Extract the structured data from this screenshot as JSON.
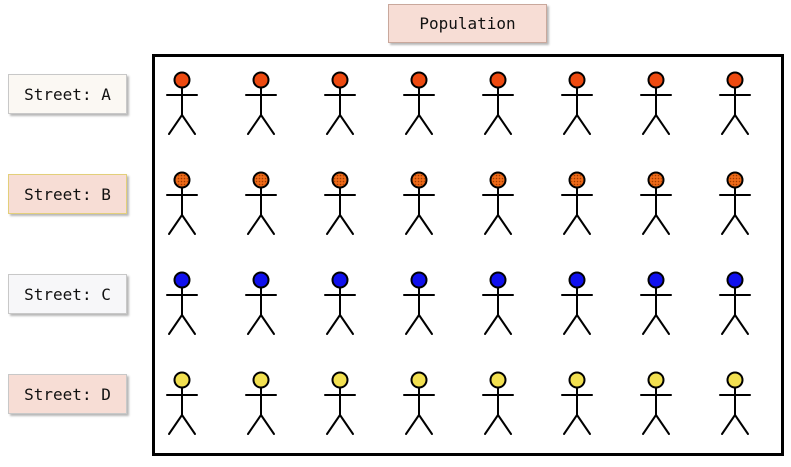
{
  "title": "Population",
  "streets": [
    {
      "label": "Street: A",
      "figure_count": 8,
      "head_color": "#ee4a10",
      "head_pattern": "solid",
      "label_bg": "#fbf8f3"
    },
    {
      "label": "Street: B",
      "figure_count": 8,
      "head_color": "#ee6a18",
      "head_pattern": "dotted",
      "label_bg": "#f7ddd5"
    },
    {
      "label": "Street: C",
      "figure_count": 8,
      "head_color": "#1010ee",
      "head_pattern": "solid",
      "label_bg": "#f7f7f9"
    },
    {
      "label": "Street: D",
      "figure_count": 8,
      "head_color": "#f2e050",
      "head_pattern": "solid",
      "label_bg": "#f7ddd5"
    }
  ]
}
